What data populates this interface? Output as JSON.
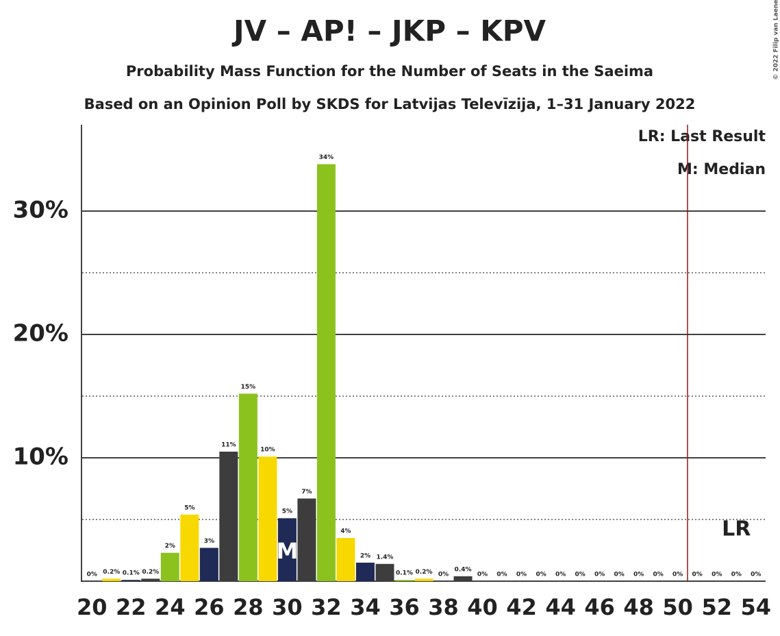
{
  "chart_data": {
    "type": "bar",
    "title": "JV – AP! – JKP – KPV",
    "subtitle": "Probability Mass Function for the Number of Seats in the Saeima",
    "subtitle2": "Based on an Opinion Poll by SKDS for Latvijas Televīzija, 1–31 January 2022",
    "x": [
      20,
      21,
      22,
      23,
      24,
      25,
      26,
      27,
      28,
      29,
      30,
      31,
      32,
      33,
      34,
      35,
      36,
      37,
      38,
      39,
      40,
      41,
      42,
      43,
      44,
      45,
      46,
      47,
      48,
      49,
      50,
      51,
      52,
      53,
      54
    ],
    "values": [
      0,
      0.2,
      0.1,
      0.2,
      2.3,
      5.4,
      2.7,
      10.5,
      15.2,
      10.1,
      5.1,
      6.7,
      33.8,
      3.5,
      1.5,
      1.4,
      0.1,
      0.2,
      0,
      0.4,
      0,
      0,
      0,
      0,
      0,
      0,
      0,
      0,
      0,
      0,
      0,
      0,
      0,
      0,
      0
    ],
    "value_labels": [
      "0%",
      "0.2%",
      "0.1%",
      "0.2%",
      "2%",
      "5%",
      "3%",
      "11%",
      "15%",
      "10%",
      "5%",
      "7%",
      "34%",
      "4%",
      "2%",
      "1.4%",
      "0.1%",
      "0.2%",
      "0%",
      "0.4%",
      "0%",
      "0%",
      "0%",
      "0%",
      "0%",
      "0%",
      "0%",
      "0%",
      "0%",
      "0%",
      "0%",
      "0%",
      "0%",
      "0%",
      "0%"
    ],
    "colors": [
      "#8cc21e",
      "#f7d800",
      "#1f2a57",
      "#3d3d3d"
    ],
    "xlim": [
      19.5,
      54.5
    ],
    "xticks": [
      20,
      22,
      24,
      26,
      28,
      30,
      32,
      34,
      36,
      38,
      40,
      42,
      44,
      46,
      48,
      50,
      52,
      54
    ],
    "ylim": [
      0,
      37
    ],
    "yticks": [
      {
        "value": 10,
        "label": "10%"
      },
      {
        "value": 20,
        "label": "20%"
      },
      {
        "value": 30,
        "label": "30%"
      }
    ],
    "minor_yticks": [
      5,
      15,
      25
    ],
    "median": 30,
    "median_label": "M",
    "last_result": 51,
    "last_result_label": "LR",
    "legend": [
      "LR: Last Result",
      "M: Median"
    ],
    "copyright": "© 2022 Filip van Laenen"
  }
}
